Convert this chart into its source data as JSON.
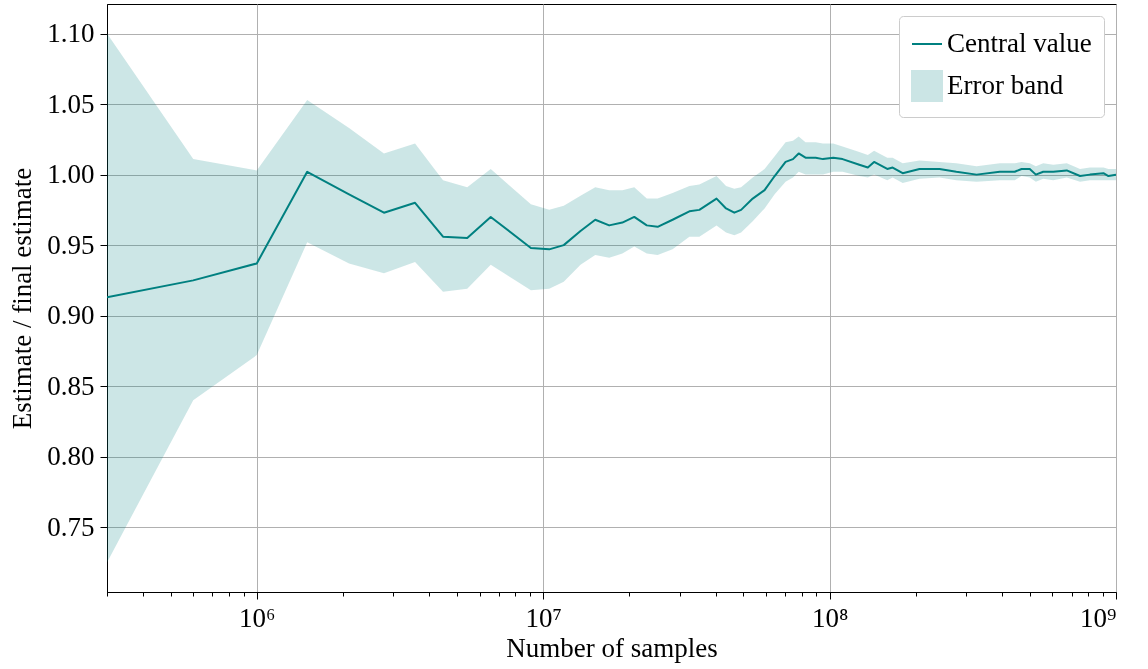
{
  "chart_data": {
    "type": "line",
    "xlabel": "Number of samples",
    "ylabel": "Estimate / final estimate",
    "x": [
      300000,
      600000,
      1000000,
      1500000,
      2100000,
      2780000,
      3570000,
      4470000,
      5430000,
      6560000,
      9060000,
      10500000,
      11800000,
      13500000,
      15200000,
      17000000,
      18900000,
      20800000,
      23000000,
      25100000,
      28300000,
      32400000,
      35100000,
      40300000,
      43500000,
      46500000,
      49100000,
      53900000,
      59300000,
      64300000,
      70200000,
      74500000,
      78000000,
      82400000,
      89400000,
      94800000,
      103000000,
      111000000,
      127000000,
      136000000,
      143000000,
      159000000,
      166000000,
      180000000,
      206000000,
      242000000,
      277000000,
      326000000,
      393000000,
      443000000,
      468000000,
      500000000,
      525000000,
      557000000,
      604000000,
      673000000,
      749000000,
      811000000,
      904000000,
      941000000,
      1000000000
    ],
    "series": [
      {
        "name": "Central value",
        "color": "#008080",
        "values": [
          0.913,
          0.925,
          0.937,
          1.002,
          0.986,
          0.973,
          0.98,
          0.956,
          0.955,
          0.97,
          0.948,
          0.947,
          0.95,
          0.96,
          0.968,
          0.964,
          0.966,
          0.97,
          0.964,
          0.963,
          0.968,
          0.974,
          0.975,
          0.983,
          0.976,
          0.973,
          0.975,
          0.983,
          0.989,
          0.999,
          1.009,
          1.011,
          1.015,
          1.012,
          1.012,
          1.011,
          1.012,
          1.011,
          1.007,
          1.005,
          1.009,
          1.004,
          1.005,
          1.001,
          1.004,
          1.004,
          1.002,
          1.0,
          1.002,
          1.002,
          1.004,
          1.004,
          1.0,
          1.002,
          1.002,
          1.003,
          0.999,
          1.0,
          1.001,
          0.999,
          1.0
        ],
        "upper": [
          1.1,
          1.011,
          1.003,
          1.053,
          1.033,
          1.015,
          1.022,
          0.996,
          0.991,
          1.004,
          0.979,
          0.975,
          0.978,
          0.985,
          0.991,
          0.989,
          0.989,
          0.991,
          0.983,
          0.983,
          0.987,
          0.992,
          0.993,
          0.999,
          0.992,
          0.99,
          0.991,
          0.998,
          1.004,
          1.013,
          1.023,
          1.024,
          1.027,
          1.023,
          1.023,
          1.022,
          1.022,
          1.02,
          1.016,
          1.014,
          1.017,
          1.012,
          1.012,
          1.008,
          1.01,
          1.009,
          1.008,
          1.006,
          1.008,
          1.008,
          1.009,
          1.008,
          1.006,
          1.008,
          1.007,
          1.008,
          1.004,
          1.005,
          1.005,
          1.004,
          1.004
        ],
        "lower": [
          0.725,
          0.84,
          0.872,
          0.952,
          0.937,
          0.93,
          0.938,
          0.917,
          0.919,
          0.936,
          0.918,
          0.919,
          0.924,
          0.936,
          0.943,
          0.941,
          0.944,
          0.949,
          0.944,
          0.943,
          0.947,
          0.956,
          0.956,
          0.964,
          0.959,
          0.957,
          0.959,
          0.967,
          0.976,
          0.986,
          0.995,
          0.998,
          1.002,
          1.0,
          1.0,
          1.0,
          1.002,
          1.002,
          0.999,
          0.998,
          1.0,
          0.996,
          0.998,
          0.994,
          0.997,
          0.998,
          0.996,
          0.995,
          0.996,
          0.996,
          0.999,
          0.998,
          0.995,
          0.997,
          0.996,
          0.998,
          0.995,
          0.996,
          0.996,
          0.996,
          0.996
        ]
      }
    ],
    "annotations": [
      "Error band"
    ],
    "log": "x",
    "xlim": [
      300000,
      1000000000
    ],
    "ylim": [
      0.704,
      1.121
    ],
    "xticks": [
      {
        "value": 300000,
        "label": null
      },
      {
        "value": 400000,
        "label": null
      },
      {
        "value": 500000,
        "label": null
      },
      {
        "value": 600000,
        "label": null
      },
      {
        "value": 700000,
        "label": null
      },
      {
        "value": 800000,
        "label": null
      },
      {
        "value": 900000,
        "label": null
      },
      {
        "value": 1000000,
        "label": "10⁶"
      },
      {
        "value": 2000000,
        "label": null
      },
      {
        "value": 3000000,
        "label": null
      },
      {
        "value": 4000000,
        "label": null
      },
      {
        "value": 5000000,
        "label": null
      },
      {
        "value": 6000000,
        "label": null
      },
      {
        "value": 7000000,
        "label": null
      },
      {
        "value": 8000000,
        "label": null
      },
      {
        "value": 9000000,
        "label": null
      },
      {
        "value": 10000000,
        "label": "10⁷"
      },
      {
        "value": 20000000,
        "label": null
      },
      {
        "value": 30000000,
        "label": null
      },
      {
        "value": 40000000,
        "label": null
      },
      {
        "value": 50000000,
        "label": null
      },
      {
        "value": 60000000,
        "label": null
      },
      {
        "value": 70000000,
        "label": null
      },
      {
        "value": 80000000,
        "label": null
      },
      {
        "value": 90000000,
        "label": null
      },
      {
        "value": 100000000,
        "label": "10⁸"
      },
      {
        "value": 200000000,
        "label": null
      },
      {
        "value": 300000000,
        "label": null
      },
      {
        "value": 400000000,
        "label": null
      },
      {
        "value": 500000000,
        "label": null
      },
      {
        "value": 600000000,
        "label": null
      },
      {
        "value": 700000000,
        "label": null
      },
      {
        "value": 800000000,
        "label": null
      },
      {
        "value": 900000000,
        "label": null
      },
      {
        "value": 1000000000,
        "label": "10⁹"
      }
    ],
    "yticks": [
      {
        "value": 0.75,
        "label": "0.75"
      },
      {
        "value": 0.8,
        "label": "0.80"
      },
      {
        "value": 0.85,
        "label": "0.85"
      },
      {
        "value": 0.9,
        "label": "0.90"
      },
      {
        "value": 0.95,
        "label": "0.95"
      },
      {
        "value": 1,
        "label": "1.00"
      },
      {
        "value": 1.05,
        "label": "1.05"
      },
      {
        "value": 1.1,
        "label": "1.10"
      }
    ],
    "grid": true,
    "legend": "top right"
  }
}
